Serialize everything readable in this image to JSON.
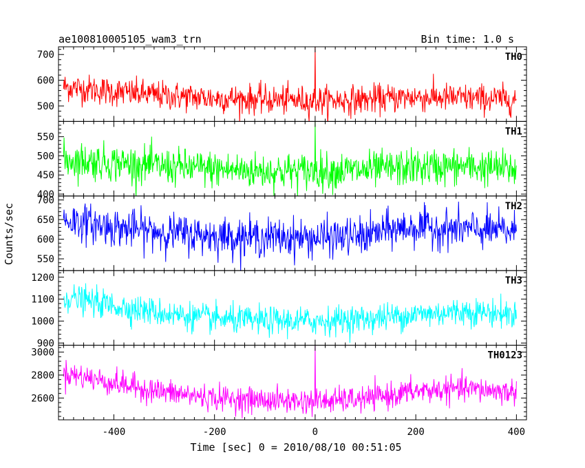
{
  "chart_data": {
    "type": "line",
    "title": "ae100810005105_wam3_trn",
    "subtitle": "Bin time: 1.0 s",
    "xlabel": "Time [sec] 0 = 2010/08/10 00:51:05",
    "ylabel": "Counts/sec",
    "xlim": [
      -510,
      420
    ],
    "xticks": [
      "-400",
      "-200",
      "0",
      "200",
      "400"
    ],
    "x_tick_values": [
      -400,
      -200,
      0,
      200,
      400
    ],
    "grid": false,
    "panels": [
      {
        "name": "TH0",
        "color": "#ff0000",
        "ylim": [
          440,
          730
        ],
        "ytick_values": [
          500,
          600,
          700
        ],
        "yticks": [
          "500",
          "600",
          "700"
        ],
        "series": {
          "x": [
            -500,
            -400,
            -300,
            -200,
            -100,
            0,
            100,
            200,
            300,
            400
          ],
          "values": [
            575,
            555,
            540,
            530,
            525,
            520,
            525,
            535,
            530,
            525
          ]
        },
        "noise": 28,
        "spikes": [
          {
            "x": 0,
            "value": 730
          }
        ]
      },
      {
        "name": "TH1",
        "color": "#00ff00",
        "ylim": [
          395,
          590
        ],
        "ytick_values": [
          400,
          450,
          500,
          550
        ],
        "yticks": [
          "400",
          "450",
          "500",
          "550"
        ],
        "series": {
          "x": [
            -500,
            -400,
            -300,
            -200,
            -100,
            0,
            100,
            200,
            300,
            400
          ],
          "values": [
            490,
            482,
            472,
            465,
            460,
            460,
            462,
            470,
            472,
            465
          ]
        },
        "noise": 24,
        "spikes": [
          {
            "x": 0,
            "value": 590
          }
        ]
      },
      {
        "name": "TH2",
        "color": "#0000ff",
        "ylim": [
          520,
          710
        ],
        "ytick_values": [
          550,
          600,
          650,
          700
        ],
        "yticks": [
          "550",
          "600",
          "650",
          "700"
        ],
        "series": {
          "x": [
            -500,
            -400,
            -300,
            -200,
            -100,
            0,
            100,
            150,
            200,
            300,
            400
          ],
          "values": [
            650,
            630,
            618,
            608,
            605,
            603,
            608,
            625,
            630,
            625,
            620
          ]
        },
        "noise": 24,
        "spikes": []
      },
      {
        "name": "TH3",
        "color": "#00ffff",
        "ylim": [
          890,
          1230
        ],
        "ytick_values": [
          900,
          1000,
          1100,
          1200
        ],
        "yticks": [
          "900",
          "1000",
          "1100",
          "1200"
        ],
        "series": {
          "x": [
            -500,
            -400,
            -300,
            -200,
            -100,
            0,
            100,
            200,
            300,
            400
          ],
          "values": [
            1110,
            1070,
            1035,
            1010,
            1000,
            1000,
            1010,
            1030,
            1045,
            1030
          ]
        },
        "noise": 32,
        "spikes": []
      },
      {
        "name": "TH0123",
        "color": "#ff00ff",
        "ylim": [
          2410,
          3060
        ],
        "ytick_values": [
          2600,
          2800,
          3000
        ],
        "yticks": [
          "2600",
          "2800",
          "3000"
        ],
        "series": {
          "x": [
            -500,
            -400,
            -300,
            -200,
            -100,
            0,
            100,
            200,
            300,
            400
          ],
          "values": [
            2820,
            2730,
            2650,
            2600,
            2580,
            2570,
            2590,
            2660,
            2680,
            2650
          ]
        },
        "noise": 55,
        "spikes": [
          {
            "x": 0,
            "value": 3060
          }
        ]
      }
    ]
  }
}
